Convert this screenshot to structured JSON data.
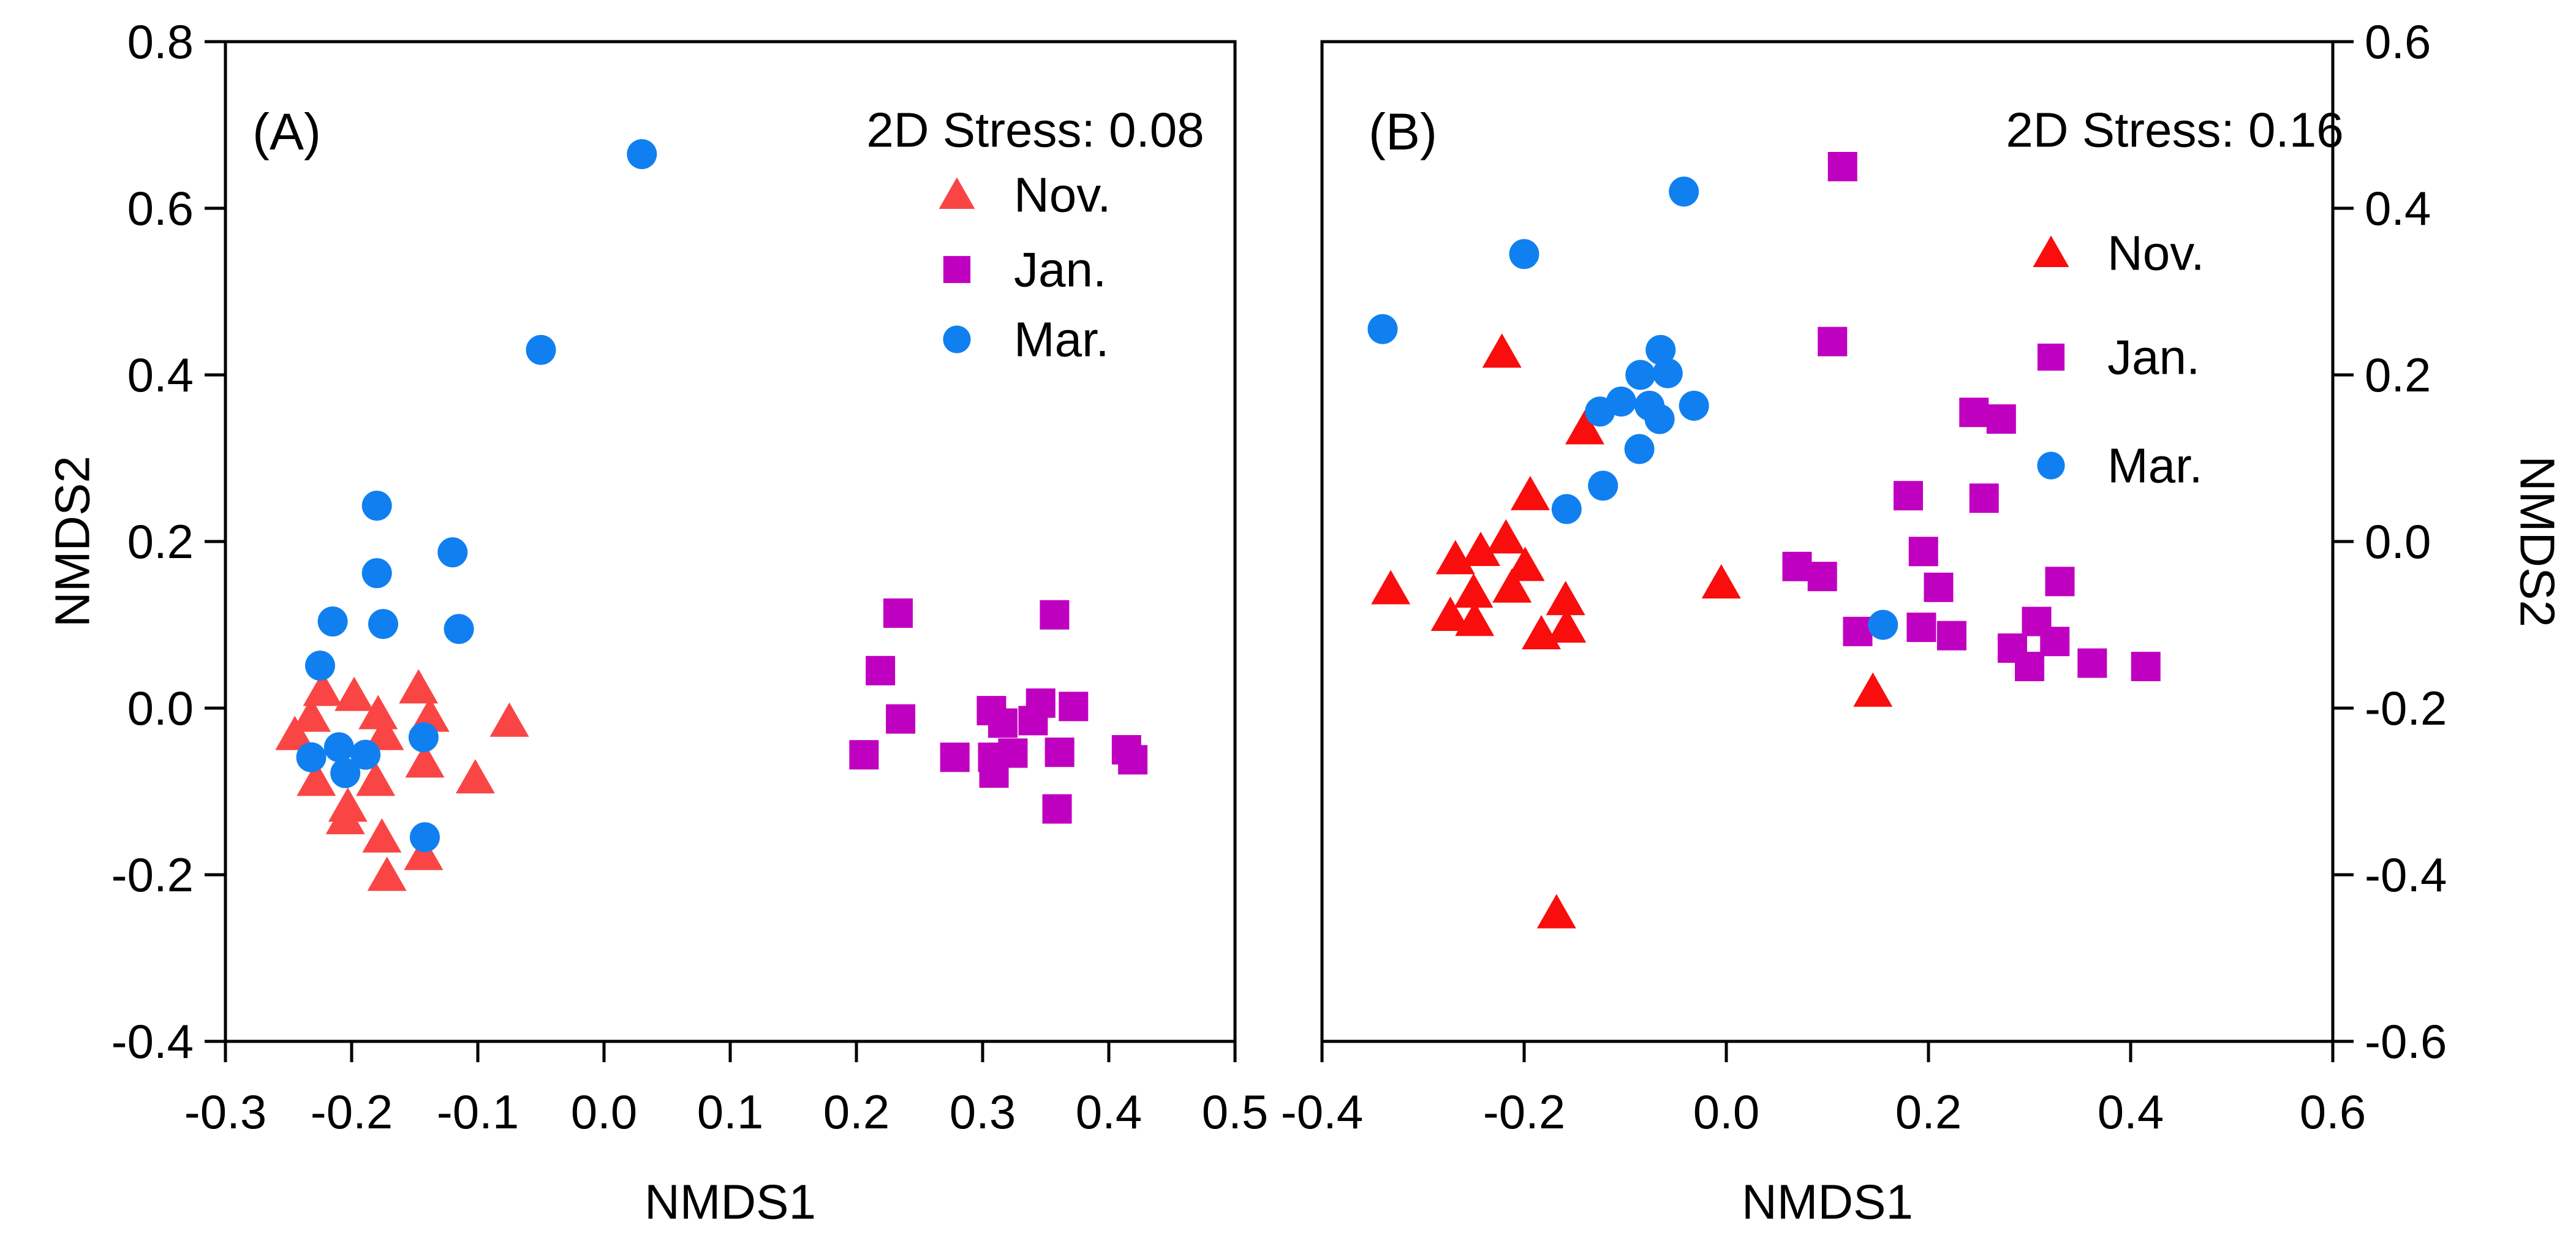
{
  "figure_title": "Two-panel NMDS ordination scatter plot",
  "chart_data": [
    {
      "type": "scatter",
      "panel_label": "(A)",
      "stress": "2D Stress: 0.08",
      "xlabel": "NMDS1",
      "ylabel": "NMDS2",
      "xlim": [
        -0.3,
        0.5
      ],
      "ylim": [
        -0.4,
        0.8
      ],
      "grid": false,
      "legend_position": "upper-right-inside",
      "x_ticks": {
        "values": [
          -0.3,
          -0.2,
          -0.1,
          0.0,
          0.1,
          0.2,
          0.3,
          0.4,
          0.5
        ],
        "labels": [
          "-0.3",
          "-0.2",
          "-0.1",
          "0.0",
          "0.1",
          "0.2",
          "0.3",
          "0.4",
          "0.5"
        ]
      },
      "y_ticks": {
        "side": "left",
        "values": [
          -0.4,
          -0.2,
          0.0,
          0.2,
          0.4,
          0.6,
          0.8
        ],
        "labels": [
          "-0.4",
          "-0.2",
          "0.0",
          "0.2",
          "0.4",
          "0.6",
          "0.8"
        ]
      },
      "series": [
        {
          "name": "Nov.",
          "marker": "triangle",
          "color": "#FA4545",
          "points": [
            [
              -0.223,
              0.021
            ],
            [
              -0.198,
              0.015
            ],
            [
              -0.147,
              0.024
            ],
            [
              -0.232,
              -0.01
            ],
            [
              -0.179,
              -0.007
            ],
            [
              -0.138,
              -0.01
            ],
            [
              -0.245,
              -0.032
            ],
            [
              -0.075,
              -0.016
            ],
            [
              -0.174,
              -0.032
            ],
            [
              -0.142,
              -0.065
            ],
            [
              -0.102,
              -0.084
            ],
            [
              -0.228,
              -0.087
            ],
            [
              -0.181,
              -0.087
            ],
            [
              -0.203,
              -0.118
            ],
            [
              -0.205,
              -0.133
            ],
            [
              -0.176,
              -0.155
            ],
            [
              -0.143,
              -0.176
            ],
            [
              -0.172,
              -0.201
            ]
          ]
        },
        {
          "name": "Jan.",
          "marker": "square",
          "color": "#C000C0",
          "points": [
            [
              0.233,
              0.114
            ],
            [
              0.357,
              0.112
            ],
            [
              0.219,
              0.045
            ],
            [
              0.235,
              -0.013
            ],
            [
              0.206,
              -0.056
            ],
            [
              0.278,
              -0.059
            ],
            [
              0.307,
              -0.003
            ],
            [
              0.346,
              0.006
            ],
            [
              0.316,
              -0.018
            ],
            [
              0.34,
              -0.015
            ],
            [
              0.372,
              0.002
            ],
            [
              0.308,
              -0.059
            ],
            [
              0.324,
              -0.054
            ],
            [
              0.361,
              -0.053
            ],
            [
              0.414,
              -0.05
            ],
            [
              0.419,
              -0.062
            ],
            [
              0.309,
              -0.078
            ],
            [
              0.359,
              -0.121
            ]
          ]
        },
        {
          "name": "Mar.",
          "marker": "circle",
          "color": "#1080F0",
          "points": [
            [
              0.03,
              0.665
            ],
            [
              -0.05,
              0.43
            ],
            [
              -0.18,
              0.243
            ],
            [
              -0.12,
              0.187
            ],
            [
              -0.18,
              0.162
            ],
            [
              -0.215,
              0.104
            ],
            [
              -0.175,
              0.101
            ],
            [
              -0.115,
              0.095
            ],
            [
              -0.225,
              0.051
            ],
            [
              -0.232,
              -0.059
            ],
            [
              -0.21,
              -0.047
            ],
            [
              -0.189,
              -0.056
            ],
            [
              -0.205,
              -0.078
            ],
            [
              -0.143,
              -0.035
            ],
            [
              -0.142,
              -0.155
            ]
          ]
        }
      ],
      "legend": [
        {
          "label": "Nov.",
          "marker": "triangle",
          "color": "#FA4545"
        },
        {
          "label": "Jan.",
          "marker": "square",
          "color": "#C000C0"
        },
        {
          "label": "Mar.",
          "marker": "circle",
          "color": "#1080F0"
        }
      ]
    },
    {
      "type": "scatter",
      "panel_label": "(B)",
      "stress": "2D Stress: 0.16",
      "xlabel": "NMDS1",
      "ylabel": "NMDS2",
      "xlim": [
        -0.4,
        0.6
      ],
      "ylim": [
        -0.6,
        0.6
      ],
      "grid": false,
      "legend_position": "upper-right-inside",
      "x_ticks": {
        "values": [
          -0.4,
          -0.2,
          0.0,
          0.2,
          0.4,
          0.6
        ],
        "labels": [
          "-0.4",
          "-0.2",
          "0.0",
          "0.2",
          "0.4",
          "0.6"
        ]
      },
      "y_ticks": {
        "side": "right",
        "values": [
          -0.6,
          -0.4,
          -0.2,
          0.0,
          0.2,
          0.4,
          0.6
        ],
        "labels": [
          "-0.6",
          "-0.4",
          "-0.2",
          "0.0",
          "0.2",
          "0.4",
          "0.6"
        ]
      },
      "series": [
        {
          "name": "Nov.",
          "marker": "triangle",
          "color": "#F90D0D",
          "points": [
            [
              -0.222,
              0.227
            ],
            [
              -0.14,
              0.135
            ],
            [
              -0.194,
              0.056
            ],
            [
              -0.218,
              0.004
            ],
            [
              -0.243,
              -0.011
            ],
            [
              -0.268,
              -0.021
            ],
            [
              -0.199,
              -0.029
            ],
            [
              -0.332,
              -0.057
            ],
            [
              -0.25,
              -0.061
            ],
            [
              -0.212,
              -0.055
            ],
            [
              -0.159,
              -0.07
            ],
            [
              -0.273,
              -0.089
            ],
            [
              -0.249,
              -0.095
            ],
            [
              -0.158,
              -0.103
            ],
            [
              -0.183,
              -0.111
            ],
            [
              -0.005,
              -0.05
            ],
            [
              0.145,
              -0.18
            ],
            [
              -0.168,
              -0.446
            ]
          ]
        },
        {
          "name": "Jan.",
          "marker": "square",
          "color": "#C000C0",
          "points": [
            [
              0.115,
              0.45
            ],
            [
              0.105,
              0.24
            ],
            [
              0.245,
              0.155
            ],
            [
              0.272,
              0.147
            ],
            [
              0.18,
              0.055
            ],
            [
              0.255,
              0.052
            ],
            [
              0.195,
              -0.012
            ],
            [
              0.21,
              -0.055
            ],
            [
              0.07,
              -0.03
            ],
            [
              0.095,
              -0.042
            ],
            [
              0.13,
              -0.108
            ],
            [
              0.193,
              -0.103
            ],
            [
              0.223,
              -0.113
            ],
            [
              0.33,
              -0.048
            ],
            [
              0.307,
              -0.096
            ],
            [
              0.325,
              -0.12
            ],
            [
              0.283,
              -0.128
            ],
            [
              0.3,
              -0.15
            ],
            [
              0.362,
              -0.146
            ],
            [
              0.415,
              -0.15
            ]
          ]
        },
        {
          "name": "Mar.",
          "marker": "circle",
          "color": "#1080F0",
          "points": [
            [
              -0.042,
              0.42
            ],
            [
              -0.2,
              0.345
            ],
            [
              -0.34,
              0.255
            ],
            [
              -0.065,
              0.23
            ],
            [
              -0.085,
              0.2
            ],
            [
              -0.058,
              0.202
            ],
            [
              -0.104,
              0.168
            ],
            [
              -0.125,
              0.156
            ],
            [
              -0.076,
              0.163
            ],
            [
              -0.066,
              0.147
            ],
            [
              -0.032,
              0.163
            ],
            [
              -0.086,
              0.111
            ],
            [
              -0.122,
              0.067
            ],
            [
              -0.158,
              0.039
            ],
            [
              0.155,
              -0.1
            ]
          ]
        }
      ],
      "legend": [
        {
          "label": "Nov.",
          "marker": "triangle",
          "color": "#F90D0D"
        },
        {
          "label": "Jan.",
          "marker": "square",
          "color": "#C000C0"
        },
        {
          "label": "Mar.",
          "marker": "circle",
          "color": "#1080F0"
        }
      ]
    }
  ]
}
